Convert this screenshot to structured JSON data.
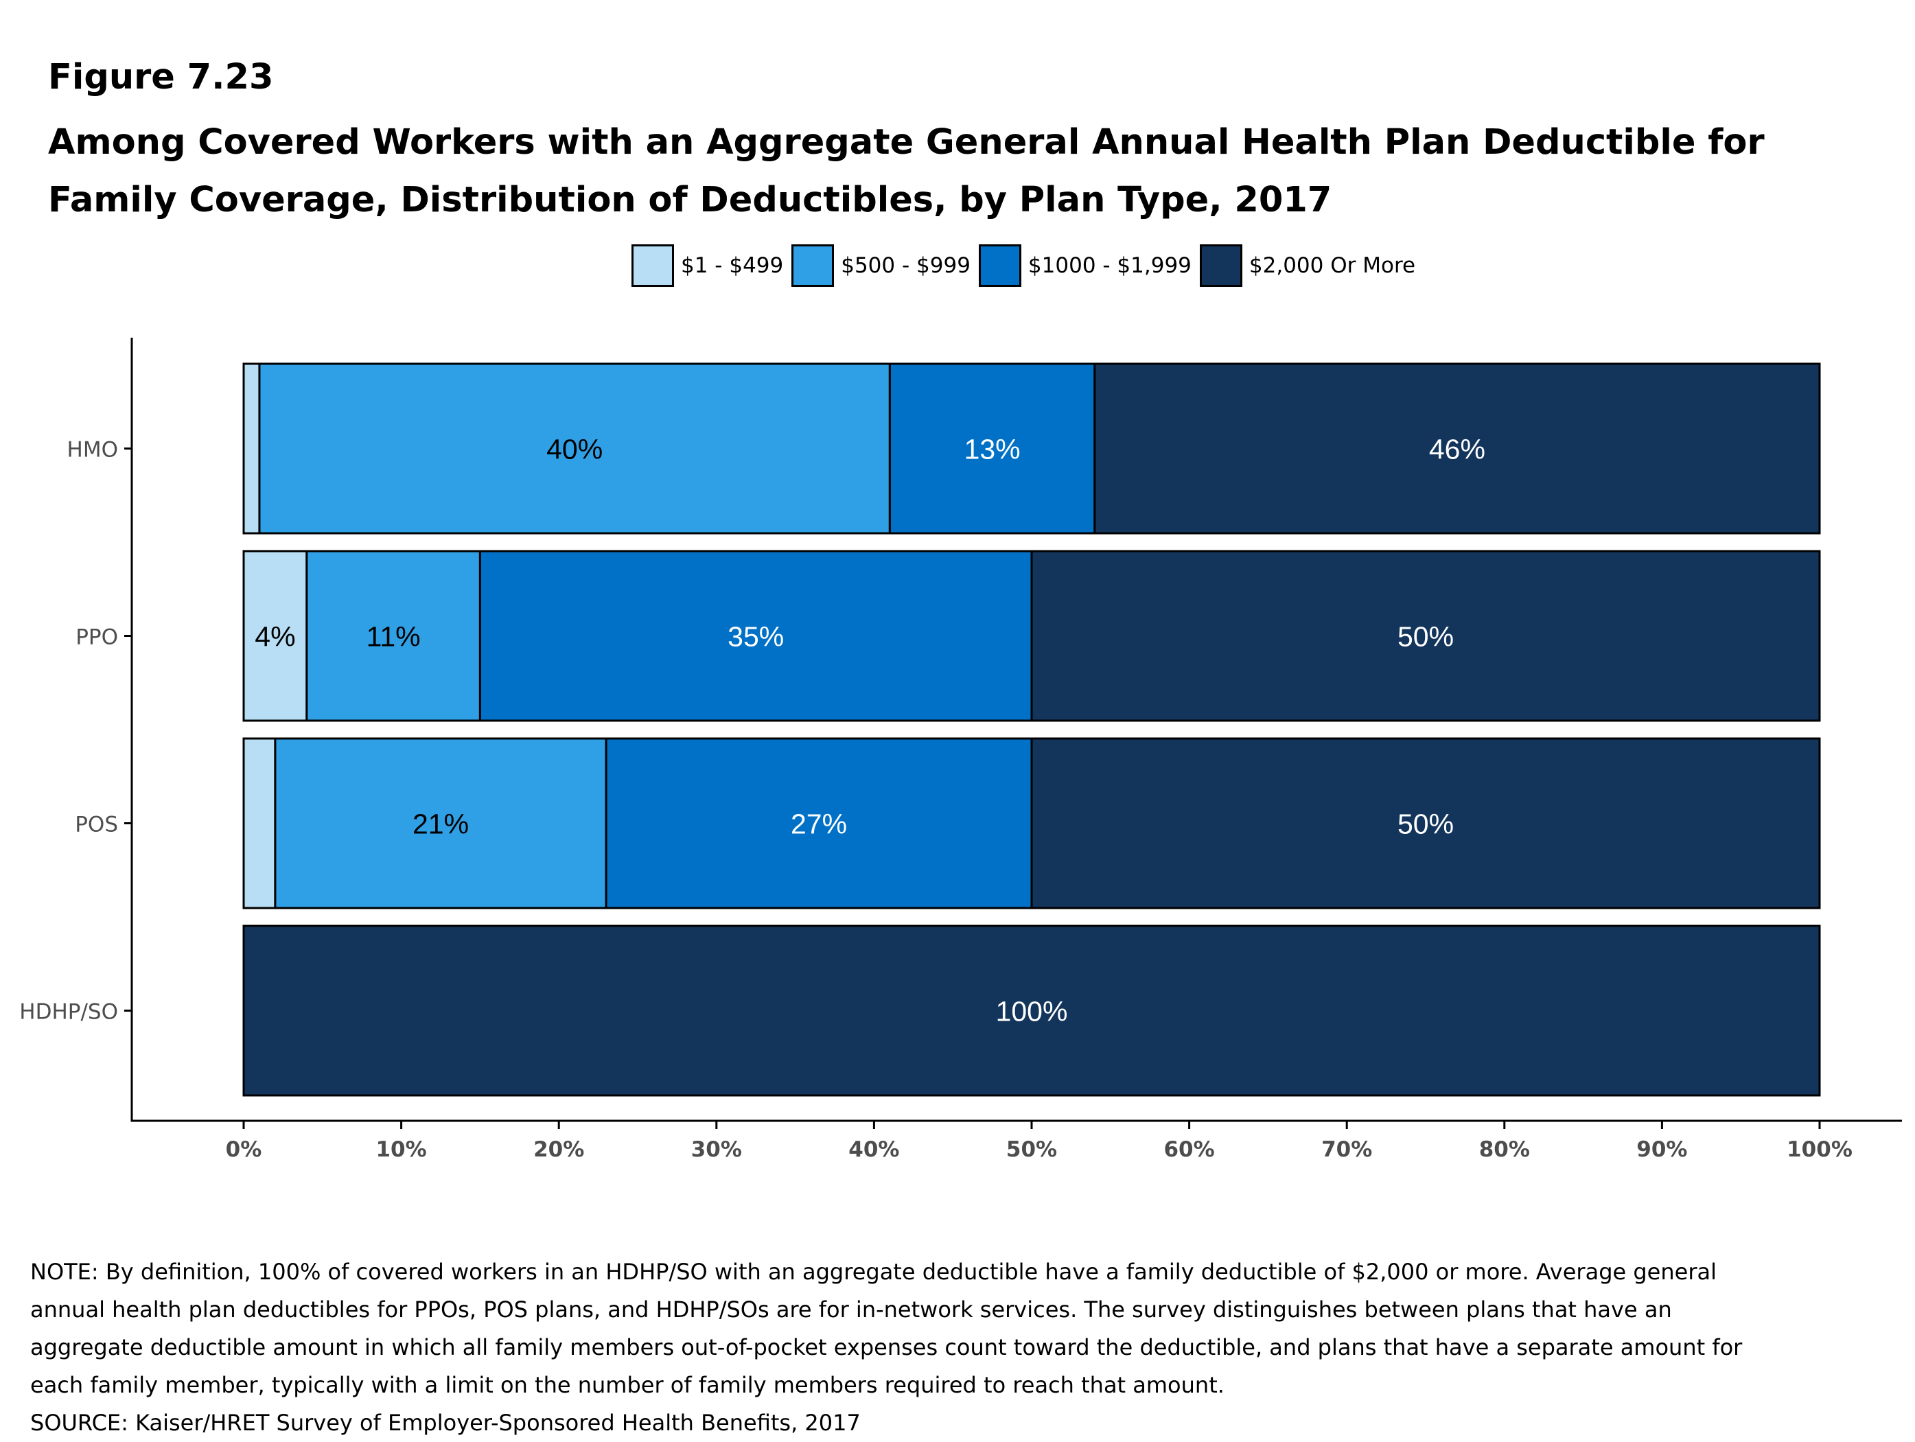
{
  "figure_label": "Figure 7.23",
  "title": "Among Covered Workers with an Aggregate General Annual Health Plan Deductible for Family Coverage, Distribution of Deductibles, by Plan Type, 2017",
  "note": "NOTE: By definition, 100% of covered workers in an HDHP/SO with an aggregate deductible have a family deductible of $2,000 or more. Average general annual health plan deductibles for PPOs, POS plans, and HDHP/SOs are for in-network services. The survey distinguishes between plans that have an aggregate deductible amount in which all family members out-of-pocket expenses count toward the deductible, and plans that have a separate amount for each family member, typically with a limit on the number of family members required to reach that amount.",
  "source": "SOURCE: Kaiser/HRET Survey of Employer-Sponsored Health Benefits, 2017",
  "chart_data": {
    "type": "bar",
    "orientation": "horizontal",
    "stacked": true,
    "categories": [
      "HMO",
      "PPO",
      "POS",
      "HDHP/SO"
    ],
    "series": [
      {
        "name": "$1 - $499",
        "color": "#b8def5",
        "values": [
          1,
          4,
          2,
          0
        ],
        "labels": [
          "",
          "4%",
          "",
          ""
        ],
        "label_color": "#000000"
      },
      {
        "name": "$500 - $999",
        "color": "#30a0e6",
        "values": [
          40,
          11,
          21,
          0
        ],
        "labels": [
          "40%",
          "11%",
          "21%",
          ""
        ],
        "label_color": "#000000"
      },
      {
        "name": "$1000 - $1,999",
        "color": "#0071c7",
        "values": [
          13,
          35,
          27,
          0
        ],
        "labels": [
          "13%",
          "35%",
          "27%",
          ""
        ],
        "label_color": "#ffffff"
      },
      {
        "name": "$2,000 Or More",
        "color": "#13355c",
        "values": [
          46,
          50,
          50,
          100
        ],
        "labels": [
          "46%",
          "50%",
          "50%",
          "100%"
        ],
        "label_color": "#ffffff"
      }
    ],
    "xlim": [
      0,
      100
    ],
    "x_ticks": [
      "0%",
      "10%",
      "20%",
      "30%",
      "40%",
      "50%",
      "60%",
      "70%",
      "80%",
      "90%",
      "100%"
    ],
    "legend_position": "top",
    "grid": false
  }
}
